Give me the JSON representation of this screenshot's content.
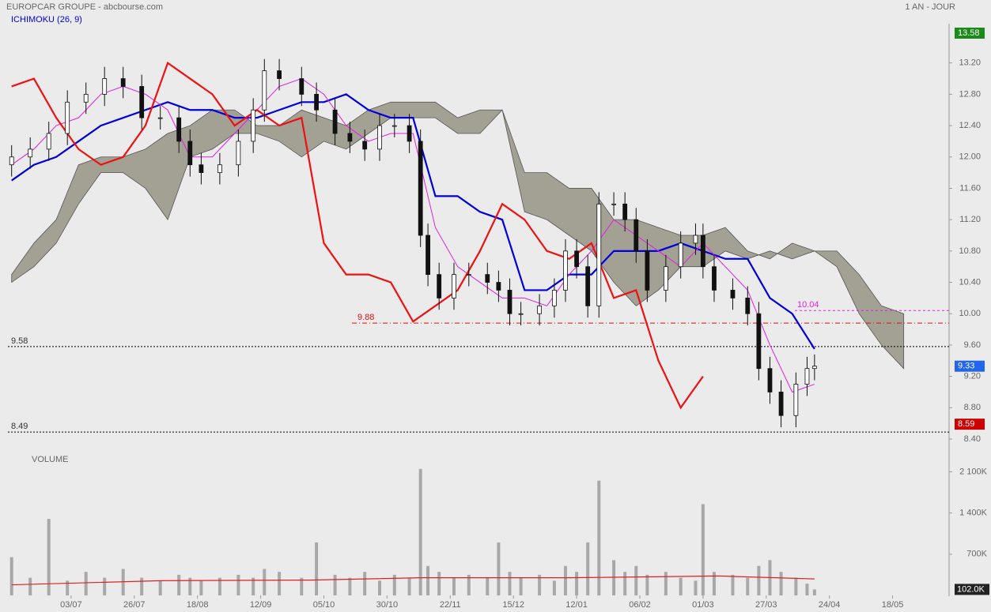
{
  "chart_data": {
    "type": "candlestick",
    "title": "EUROPCAR GROUPE - abcbourse.com",
    "period": "1 AN - JOUR",
    "indicator": "ICHIMOKU (26, 9)",
    "xlim": [
      -1,
      252.2
    ],
    "xticks": [
      {
        "value": 16,
        "label": "03/07"
      },
      {
        "value": 33,
        "label": "26/07"
      },
      {
        "value": 50,
        "label": "18/08"
      },
      {
        "value": 67,
        "label": "12/09"
      },
      {
        "value": 84,
        "label": "05/10"
      },
      {
        "value": 101,
        "label": "30/10"
      },
      {
        "value": 118,
        "label": "22/11"
      },
      {
        "value": 135,
        "label": "15/12"
      },
      {
        "value": 152,
        "label": "12/01"
      },
      {
        "value": 169,
        "label": "06/02"
      },
      {
        "value": 186,
        "label": "01/03"
      },
      {
        "value": 203,
        "label": "27/03"
      },
      {
        "value": 220,
        "label": "24/04"
      },
      {
        "value": 237,
        "label": "18/05"
      }
    ],
    "ylim": [
      8.4,
      13.6
    ],
    "yticks": [
      {
        "value": 8.4,
        "label": "8.40"
      },
      {
        "value": 8.8,
        "label": "8.80"
      },
      {
        "value": 9.2,
        "label": "9.20"
      },
      {
        "value": 9.6,
        "label": "9.60"
      },
      {
        "value": 10,
        "label": "10.00"
      },
      {
        "value": 10.4,
        "label": "10.40"
      },
      {
        "value": 10.8,
        "label": "10.80"
      },
      {
        "value": 11.2,
        "label": "11.20"
      },
      {
        "value": 11.6,
        "label": "11.60"
      },
      {
        "value": 12,
        "label": "12.00"
      },
      {
        "value": 12.4,
        "label": "12.40"
      },
      {
        "value": 12.8,
        "label": "12.80"
      },
      {
        "value": 13.2,
        "label": "13.20"
      }
    ],
    "candles": {
      "x": [
        0,
        5,
        10,
        15,
        20,
        25,
        30,
        35,
        40,
        45,
        48,
        51,
        56,
        61,
        65,
        68,
        72,
        78,
        82,
        87,
        91,
        95,
        99,
        103,
        107,
        110,
        112,
        115,
        119,
        123,
        128,
        131,
        134,
        137,
        142,
        146,
        149,
        152,
        155,
        158,
        162,
        165,
        168,
        171,
        176,
        180,
        184,
        186,
        189,
        194,
        198,
        201,
        204,
        207,
        211,
        214,
        216
      ],
      "open": [
        11.9,
        12.0,
        12.1,
        12.3,
        12.7,
        12.8,
        13.0,
        12.9,
        12.5,
        12.5,
        12.2,
        11.9,
        11.8,
        11.9,
        12.2,
        12.6,
        13.1,
        13.0,
        12.8,
        12.6,
        12.3,
        12.2,
        12.1,
        12.4,
        12.4,
        12.2,
        11.0,
        10.5,
        10.2,
        10.5,
        10.5,
        10.4,
        10.3,
        10.0,
        10.0,
        10.1,
        10.3,
        10.8,
        10.6,
        10.1,
        11.4,
        11.4,
        11.2,
        10.8,
        10.3,
        10.6,
        10.9,
        11.0,
        10.6,
        10.3,
        10.2,
        10.0,
        9.3,
        9.0,
        8.7,
        9.1,
        9.3
      ],
      "high": [
        12.15,
        12.25,
        12.45,
        12.85,
        12.95,
        13.15,
        13.15,
        13.05,
        12.65,
        12.65,
        12.35,
        12.05,
        12.05,
        12.35,
        12.75,
        13.25,
        13.25,
        13.15,
        12.95,
        12.75,
        12.45,
        12.35,
        12.55,
        12.55,
        12.55,
        12.35,
        11.15,
        10.65,
        10.65,
        10.65,
        10.65,
        10.55,
        10.45,
        10.15,
        10.25,
        10.45,
        10.95,
        10.95,
        10.75,
        11.55,
        11.55,
        11.55,
        11.35,
        10.95,
        10.75,
        11.05,
        11.15,
        11.15,
        10.75,
        10.45,
        10.35,
        10.15,
        9.45,
        9.15,
        9.25,
        9.45,
        9.48
      ],
      "low": [
        11.75,
        11.85,
        11.95,
        12.15,
        12.55,
        12.65,
        12.75,
        12.35,
        12.35,
        12.05,
        11.75,
        11.65,
        11.65,
        11.75,
        12.05,
        12.45,
        12.85,
        12.65,
        12.45,
        12.15,
        12.05,
        11.95,
        11.95,
        12.25,
        12.05,
        10.85,
        10.35,
        10.05,
        10.05,
        10.35,
        10.25,
        10.15,
        9.85,
        9.85,
        9.85,
        9.95,
        10.15,
        10.45,
        9.95,
        9.95,
        11.25,
        11.05,
        10.65,
        10.15,
        10.15,
        10.45,
        10.75,
        10.45,
        10.15,
        10.05,
        9.85,
        9.15,
        8.85,
        8.55,
        8.55,
        8.95,
        9.15
      ],
      "close": [
        12.0,
        12.1,
        12.3,
        12.7,
        12.8,
        13.0,
        12.9,
        12.5,
        12.5,
        12.2,
        11.9,
        11.8,
        11.9,
        12.2,
        12.6,
        13.1,
        13.0,
        12.8,
        12.6,
        12.3,
        12.2,
        12.1,
        12.4,
        12.4,
        12.2,
        11.0,
        10.5,
        10.2,
        10.5,
        10.5,
        10.4,
        10.3,
        10.0,
        10.0,
        10.1,
        10.3,
        10.8,
        10.6,
        10.1,
        11.4,
        11.4,
        11.2,
        10.8,
        10.3,
        10.6,
        10.9,
        11.0,
        10.6,
        10.3,
        10.2,
        10.0,
        9.3,
        9.0,
        8.7,
        9.1,
        9.3,
        9.33
      ],
      "volume": [
        650000,
        300000,
        1300000,
        250000,
        400000,
        300000,
        450000,
        300000,
        250000,
        350000,
        300000,
        250000,
        300000,
        350000,
        300000,
        450000,
        400000,
        300000,
        900000,
        350000,
        300000,
        400000,
        250000,
        350000,
        300000,
        2150000,
        500000,
        400000,
        300000,
        350000,
        300000,
        900000,
        400000,
        300000,
        350000,
        250000,
        500000,
        400000,
        900000,
        1950000,
        600000,
        400000,
        500000,
        350000,
        400000,
        300000,
        250000,
        1550000,
        400000,
        350000,
        300000,
        500000,
        600000,
        400000,
        300000,
        200000,
        102000
      ]
    },
    "line_x": [
      0,
      6,
      12,
      18,
      24,
      30,
      36,
      42,
      48,
      54,
      60,
      66,
      72,
      78,
      84,
      90,
      96,
      102,
      108,
      114,
      120,
      126,
      132,
      138,
      144,
      150,
      156,
      162,
      168,
      174,
      180,
      186,
      192,
      198,
      204,
      210,
      216,
      222,
      228,
      234,
      240
    ],
    "lines": [
      {
        "name": "kijun",
        "color": "#0000dd",
        "width": 2.2,
        "values": [
          11.7,
          11.9,
          12.0,
          12.2,
          12.4,
          12.5,
          12.6,
          12.7,
          12.6,
          12.6,
          12.5,
          12.5,
          12.6,
          12.7,
          12.7,
          12.8,
          12.6,
          12.5,
          12.5,
          11.5,
          11.5,
          11.3,
          11.2,
          10.3,
          10.3,
          10.5,
          10.5,
          10.8,
          10.8,
          10.8,
          10.9,
          10.8,
          10.7,
          10.7,
          10.2,
          10.0,
          9.55,
          null,
          null,
          null,
          null
        ]
      },
      {
        "name": "tenkan",
        "color": "#e020e0",
        "width": 1,
        "values": [
          11.9,
          12.1,
          12.4,
          12.5,
          12.8,
          12.9,
          12.8,
          12.6,
          12.0,
          12.0,
          12.3,
          12.6,
          12.9,
          13.0,
          12.8,
          12.4,
          12.2,
          12.3,
          12.3,
          11.1,
          10.6,
          10.4,
          10.2,
          10.2,
          10.1,
          10.5,
          10.8,
          11.2,
          11.0,
          10.8,
          10.6,
          10.9,
          10.6,
          10.3,
          9.6,
          9.0,
          9.1,
          null,
          null,
          null,
          null
        ]
      },
      {
        "name": "chikou",
        "color": "#ee1111",
        "width": 2.2,
        "values": [
          12.9,
          13.0,
          12.5,
          12.1,
          11.9,
          12.0,
          12.4,
          13.2,
          13.0,
          12.8,
          12.4,
          12.6,
          12.4,
          12.5,
          10.9,
          10.5,
          10.5,
          10.4,
          9.9,
          10.1,
          10.3,
          10.8,
          11.4,
          11.2,
          10.8,
          10.7,
          10.9,
          10.2,
          10.3,
          9.4,
          8.8,
          9.2,
          null,
          null,
          null,
          null,
          null,
          null,
          null,
          null,
          null
        ]
      }
    ],
    "cloud": {
      "color": "#a3a194",
      "span_a": [
        10.5,
        10.9,
        11.2,
        11.9,
        12.0,
        12.0,
        12.1,
        12.3,
        12.4,
        12.6,
        12.6,
        12.4,
        12.4,
        12.6,
        12.5,
        12.4,
        12.6,
        12.7,
        12.7,
        12.7,
        12.5,
        12.6,
        12.6,
        11.8,
        11.8,
        11.6,
        11.6,
        11.2,
        11.2,
        11.1,
        11.0,
        11.0,
        11.1,
        10.8,
        10.7,
        10.9,
        10.8,
        10.8,
        10.5,
        10.1,
        10.0
      ],
      "span_b": [
        10.4,
        10.6,
        10.9,
        11.4,
        11.8,
        11.8,
        11.6,
        11.2,
        12.0,
        12.1,
        12.3,
        12.3,
        12.2,
        12.0,
        12.2,
        12.1,
        12.3,
        12.5,
        12.5,
        12.5,
        12.3,
        12.3,
        12.6,
        11.3,
        11.2,
        11.0,
        10.8,
        10.4,
        10.1,
        10.3,
        10.6,
        10.6,
        10.8,
        10.7,
        10.8,
        10.7,
        10.8,
        10.6,
        10.0,
        9.6,
        9.3
      ]
    },
    "levels": [
      {
        "value": 9.58,
        "color": "#000000",
        "dash": "2,2",
        "label_at": "left"
      },
      {
        "value": 8.49,
        "color": "#000000",
        "dash": "2,2",
        "label_at": "left"
      },
      {
        "value": 9.88,
        "color": "#dd1111",
        "dash": "6,3,1,3",
        "label_at": "middle"
      },
      {
        "value": 10.04,
        "color": "#e020e0",
        "dash": "3,3",
        "label_at": "right"
      }
    ],
    "badges": [
      {
        "value": 13.58,
        "color": "#1a8a1a"
      },
      {
        "value": 9.33,
        "color": "#2266ee"
      },
      {
        "value": 8.59,
        "color": "#cc0000"
      }
    ],
    "volume_title": "VOLUME",
    "volume_color": "#a8a8a8",
    "volume_ylim": [
      0,
      2200000
    ],
    "volume_ticks": [
      {
        "value": 700000,
        "label": "700K"
      },
      {
        "value": 1400000,
        "label": "1 400K"
      },
      {
        "value": 2100000,
        "label": "2 100K"
      }
    ],
    "volume_badge": {
      "value": 102000,
      "label": "102.0K"
    },
    "volume_ma": {
      "color": "#dd2222",
      "x": [
        0,
        40,
        80,
        110,
        150,
        190,
        216
      ],
      "values": [
        180000,
        250000,
        260000,
        300000,
        300000,
        330000,
        280000
      ]
    }
  }
}
